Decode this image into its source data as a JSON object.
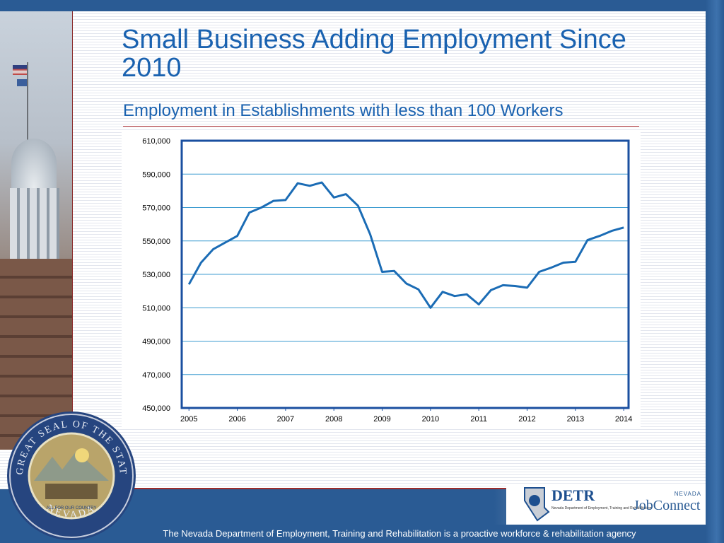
{
  "slide": {
    "title": "Small Business Adding Employment Since 2010",
    "subtitle": "Employment in Establishments with less than 100 Workers",
    "footer": "The Nevada Department of Employment, Training and Rehabilitation is a proactive workforce & rehabilitation agency"
  },
  "logos": {
    "detr": "DETR",
    "detr_sub": "Nevada Department of Employment, Training and Rehabilitation",
    "jobconnect_nevada": "NEVADA",
    "jobconnect": "JobConnect",
    "seal_text_top": "THE GREAT SEAL OF THE STATE OF",
    "seal_text_bottom": "NEVADA",
    "seal_motto": "ALL FOR OUR COUNTRY"
  },
  "colors": {
    "line": "#1b6cb5",
    "frame": "#1a4fa0",
    "grid": "#3c9bd0",
    "brand_blue": "#2a5b94"
  },
  "chart_data": {
    "type": "line",
    "title": "",
    "xlabel": "",
    "ylabel": "",
    "ylim": [
      450000,
      610000
    ],
    "yticks": [
      450000,
      470000,
      490000,
      510000,
      530000,
      550000,
      570000,
      590000,
      610000
    ],
    "ytick_labels": [
      "450,000",
      "470,000",
      "490,000",
      "510,000",
      "530,000",
      "550,000",
      "570,000",
      "590,000",
      "610,000"
    ],
    "xlim": [
      2004.85,
      2014.1
    ],
    "xticks": [
      2005,
      2006,
      2007,
      2008,
      2009,
      2010,
      2011,
      2012,
      2013,
      2014
    ],
    "xtick_labels": [
      "2005",
      "2006",
      "2007",
      "2008",
      "2009",
      "2010",
      "2011",
      "2012",
      "2013",
      "2014"
    ],
    "grid": "horizontal",
    "legend": "none",
    "series": [
      {
        "x": [
          2005.0,
          2005.25,
          2005.5,
          2005.75,
          2006.0,
          2006.25,
          2006.5,
          2006.75,
          2007.0,
          2007.25,
          2007.5,
          2007.75,
          2008.0,
          2008.25,
          2008.5,
          2008.75,
          2009.0,
          2009.25,
          2009.5,
          2009.75,
          2010.0,
          2010.25,
          2010.5,
          2010.75,
          2011.0,
          2011.25,
          2011.5,
          2011.75,
          2012.0,
          2012.25,
          2012.5,
          2012.75,
          2013.0,
          2013.25,
          2013.5,
          2013.75,
          2014.0
        ],
        "values": [
          524000,
          537000,
          545000,
          549000,
          553000,
          567000,
          570000,
          574000,
          574500,
          584500,
          583000,
          585000,
          576000,
          578000,
          571000,
          554000,
          531500,
          532000,
          524500,
          521000,
          510000,
          519500,
          517000,
          518000,
          512000,
          520500,
          523500,
          523000,
          522000,
          531500,
          534000,
          537000,
          537500,
          550500,
          553000,
          556000,
          558000
        ]
      }
    ]
  }
}
